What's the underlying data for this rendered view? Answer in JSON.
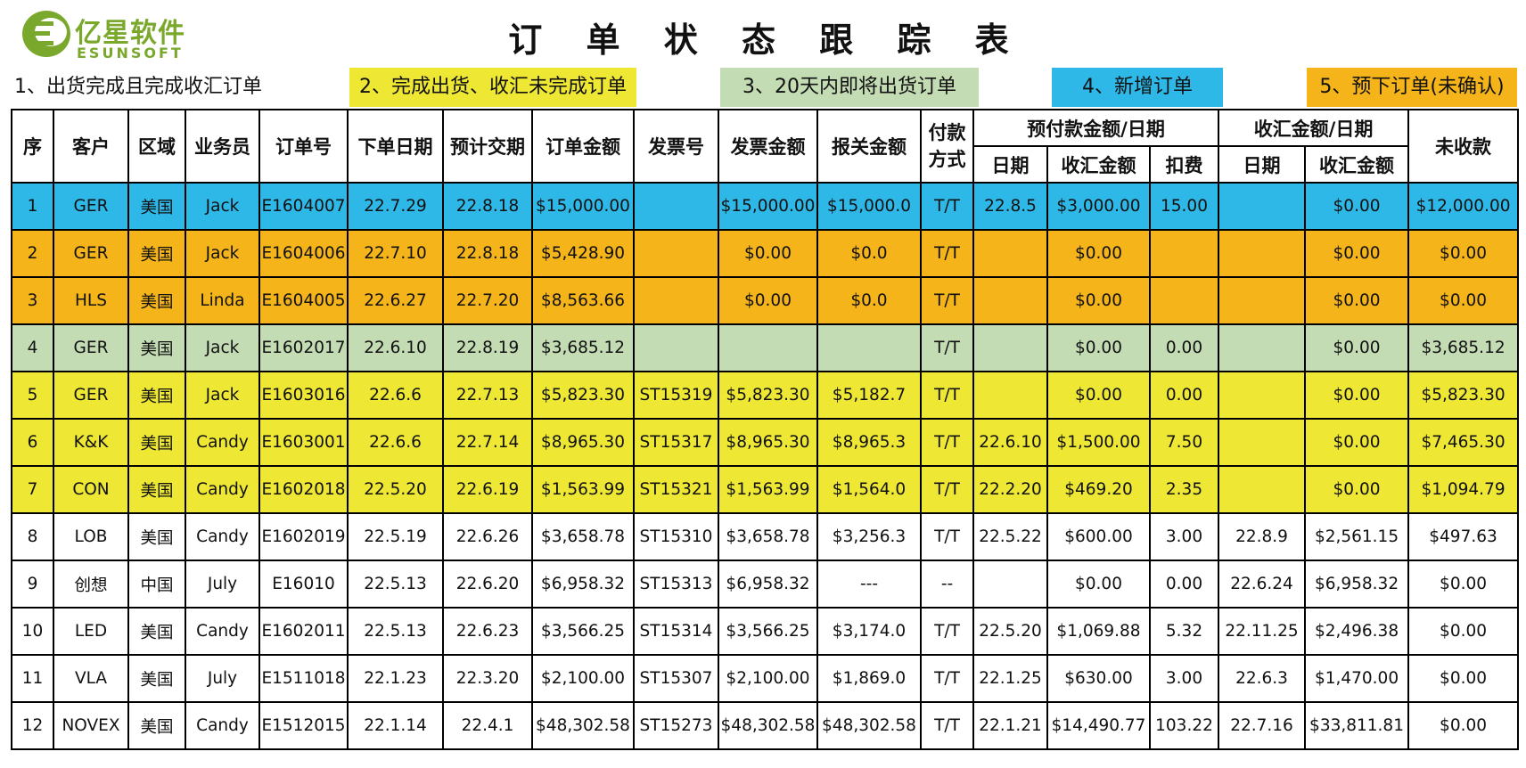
{
  "header": {
    "logo_cn": "亿星软件",
    "logo_en": "ESUNSOFT",
    "title": "订 单 状 态 跟 踪 表"
  },
  "legend": [
    {
      "label": "1、出货完成且完成收汇订单",
      "color": "#ffffff"
    },
    {
      "label": "2、完成出货、收汇未完成订单",
      "color": "#eee835"
    },
    {
      "label": "3、20天内即将出货订单",
      "color": "#c3dcb4"
    },
    {
      "label": "4、新增订单",
      "color": "#2eb8e8"
    },
    {
      "label": "5、预下订单(未确认)",
      "color": "#f4b41a"
    }
  ],
  "table": {
    "headers": {
      "seq": "序",
      "customer": "客户",
      "region": "区域",
      "sales": "业务员",
      "order_no": "订单号",
      "order_date": "下单日期",
      "delivery": "预计交期",
      "amount": "订单金额",
      "invoice_no": "发票号",
      "invoice_amount": "发票金额",
      "customs_amount": "报关金额",
      "payment": "付款方式",
      "prepay_group": "预付款金额/日期",
      "collect_group": "收汇金额/日期",
      "unpaid": "未收款",
      "sub_date": "日期",
      "sub_amount": "收汇金额",
      "sub_fee": "扣费"
    },
    "rows": [
      {
        "c": [
          "1",
          "GER",
          "美国",
          "Jack",
          "E1604007",
          "22.7.29",
          "22.8.18",
          "$15,000.00",
          "",
          "$15,000.00",
          "$15,000.0",
          "T/T",
          "22.8.5",
          "$3,000.00",
          "15.00",
          "",
          "$0.00",
          "$12,000.00"
        ]
      },
      {
        "c": [
          "2",
          "GER",
          "美国",
          "Jack",
          "E1604006",
          "22.7.10",
          "22.8.18",
          "$5,428.90",
          "",
          "$0.00",
          "$0.0",
          "T/T",
          "",
          "$0.00",
          "",
          "",
          "$0.00",
          "$0.00"
        ]
      },
      {
        "c": [
          "3",
          "HLS",
          "美国",
          "Linda",
          "E1604005",
          "22.6.27",
          "22.7.20",
          "$8,563.66",
          "",
          "$0.00",
          "$0.0",
          "T/T",
          "",
          "$0.00",
          "",
          "",
          "$0.00",
          "$0.00"
        ]
      },
      {
        "c": [
          "4",
          "GER",
          "美国",
          "Jack",
          "E1602017",
          "22.6.10",
          "22.8.19",
          "$3,685.12",
          "",
          "",
          "",
          "T/T",
          "",
          "$0.00",
          "0.00",
          "",
          "$0.00",
          "$3,685.12"
        ]
      },
      {
        "c": [
          "5",
          "GER",
          "美国",
          "Jack",
          "E1603016",
          "22.6.6",
          "22.7.13",
          "$5,823.30",
          "ST15319",
          "$5,823.30",
          "$5,182.7",
          "T/T",
          "",
          "$0.00",
          "0.00",
          "",
          "$0.00",
          "$5,823.30"
        ]
      },
      {
        "c": [
          "6",
          "K&K",
          "美国",
          "Candy",
          "E1603001",
          "22.6.6",
          "22.7.14",
          "$8,965.30",
          "ST15317",
          "$8,965.30",
          "$8,965.3",
          "T/T",
          "22.6.10",
          "$1,500.00",
          "7.50",
          "",
          "$0.00",
          "$7,465.30"
        ]
      },
      {
        "c": [
          "7",
          "CON",
          "美国",
          "Candy",
          "E1602018",
          "22.5.20",
          "22.6.19",
          "$1,563.99",
          "ST15321",
          "$1,563.99",
          "$1,564.0",
          "T/T",
          "22.2.20",
          "$469.20",
          "2.35",
          "",
          "$0.00",
          "$1,094.79"
        ]
      },
      {
        "c": [
          "8",
          "LOB",
          "美国",
          "Candy",
          "E1602019",
          "22.5.19",
          "22.6.26",
          "$3,658.78",
          "ST15310",
          "$3,658.78",
          "$3,256.3",
          "T/T",
          "22.5.22",
          "$600.00",
          "3.00",
          "22.8.9",
          "$2,561.15",
          "$497.63"
        ]
      },
      {
        "c": [
          "9",
          "创想",
          "中国",
          "July",
          "E16010",
          "22.5.13",
          "22.6.20",
          "$6,958.32",
          "ST15313",
          "$6,958.32",
          "---",
          "--",
          "",
          "$0.00",
          "0.00",
          "22.6.24",
          "$6,958.32",
          "$0.00"
        ]
      },
      {
        "c": [
          "10",
          "LED",
          "美国",
          "Candy",
          "E1602011",
          "22.5.13",
          "22.6.23",
          "$3,566.25",
          "ST15314",
          "$3,566.25",
          "$3,174.0",
          "T/T",
          "22.5.20",
          "$1,069.88",
          "5.32",
          "22.11.25",
          "$2,496.38",
          "$0.00"
        ]
      },
      {
        "c": [
          "11",
          "VLA",
          "美国",
          "July",
          "E1511018",
          "22.1.23",
          "22.3.20",
          "$2,100.00",
          "ST15307",
          "$2,100.00",
          "$1,869.0",
          "T/T",
          "22.1.25",
          "$630.00",
          "3.00",
          "22.6.3",
          "$1,470.00",
          "$0.00"
        ]
      },
      {
        "c": [
          "12",
          "NOVEX",
          "美国",
          "Candy",
          "E1512015",
          "22.1.14",
          "22.4.1",
          "$48,302.58",
          "ST15273",
          "$48,302.58",
          "$48,302.58",
          "T/T",
          "22.1.21",
          "$14,490.77",
          "103.22",
          "22.7.16",
          "$33,811.81",
          "$0.00"
        ]
      }
    ],
    "row_colors": [
      "blue",
      "orange",
      "orange",
      "green",
      "yellow",
      "yellow",
      "yellow",
      "white",
      "white",
      "white",
      "white",
      "white"
    ]
  }
}
